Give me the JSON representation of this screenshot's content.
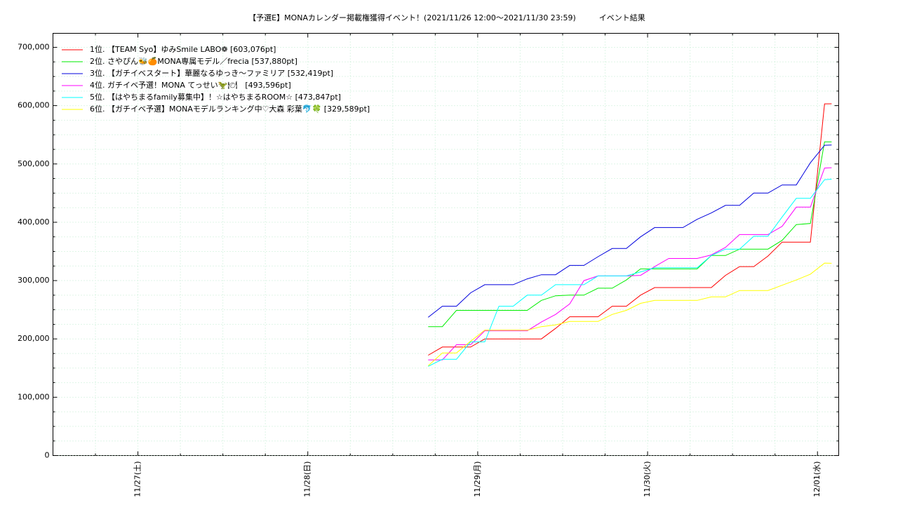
{
  "chart_data": {
    "type": "line",
    "title": "【予選E】MONAカレンダー掲載権獲得イベント！(2021/11/26 12:00〜2021/11/30 23:59)　　　イベント結果",
    "x": [
      "11/28 17:00",
      "11/28 19:00",
      "11/28 21:00",
      "11/28 23:00",
      "11/29 01:00",
      "11/29 03:00",
      "11/29 05:00",
      "11/29 07:00",
      "11/29 09:00",
      "11/29 11:00",
      "11/29 13:00",
      "11/29 15:00",
      "11/29 17:00",
      "11/29 19:00",
      "11/29 21:00",
      "11/29 23:00",
      "11/30 01:00",
      "11/30 03:00",
      "11/30 05:00",
      "11/30 07:00",
      "11/30 09:00",
      "11/30 11:00",
      "11/30 13:00",
      "11/30 15:00",
      "11/30 17:00",
      "11/30 19:00",
      "11/30 21:00",
      "11/30 23:00",
      "12/01 01:00",
      "12/01 02:00"
    ],
    "series": [
      {
        "name": "1位. 【TEAM Syo】ゆみSmile LABO❁ [603,076pt]",
        "color": "#ff0000",
        "values": [
          172000,
          186000,
          186000,
          186000,
          200000,
          200000,
          200000,
          200000,
          200000,
          218000,
          238000,
          238000,
          238000,
          256000,
          256000,
          275000,
          288000,
          288000,
          288000,
          288000,
          288000,
          309000,
          324000,
          324000,
          342000,
          366000,
          366000,
          366000,
          603000,
          603076
        ]
      },
      {
        "name": "2位. さやぴん🐝🍊MONA専属モデル／frecia [537,880pt]",
        "color": "#00ee00",
        "values": [
          221000,
          221000,
          249000,
          249000,
          249000,
          249000,
          249000,
          249000,
          266000,
          274000,
          275000,
          275000,
          287000,
          287000,
          301000,
          320000,
          320000,
          320000,
          320000,
          320000,
          343000,
          343000,
          354000,
          354000,
          354000,
          369000,
          396000,
          398000,
          538000,
          537880
        ]
      },
      {
        "name": "3位. 【ガチイベスタート】華麗なるゆっき〜ファミリア [532,419pt]",
        "color": "#0000dd",
        "values": [
          237000,
          256000,
          256000,
          279000,
          293000,
          293000,
          293000,
          303000,
          310000,
          310000,
          326000,
          326000,
          341000,
          355000,
          355000,
          375000,
          391000,
          391000,
          391000,
          405000,
          416000,
          429000,
          429000,
          450000,
          450000,
          464000,
          464000,
          502000,
          532000,
          532419
        ]
      },
      {
        "name": "4位. ガチイベ予選！MONA てっせい🦖🍽　[493,596pt]",
        "color": "#ff00ff",
        "values": [
          164000,
          164000,
          190000,
          190000,
          214000,
          214000,
          214000,
          214000,
          229000,
          242000,
          260000,
          300000,
          308000,
          308000,
          308000,
          309000,
          324000,
          338000,
          338000,
          338000,
          344000,
          357000,
          379000,
          379000,
          379000,
          393000,
          426000,
          426000,
          493000,
          493596
        ]
      },
      {
        "name": "5位. 【はやちまるfamily募集中】！☆はやちまるROOM☆ [473,847pt]",
        "color": "#00ffff",
        "values": [
          153000,
          165000,
          165000,
          195000,
          195000,
          256000,
          256000,
          275000,
          275000,
          293000,
          293000,
          293000,
          308000,
          308000,
          308000,
          315000,
          322000,
          322000,
          322000,
          322000,
          343000,
          354000,
          354000,
          376000,
          376000,
          409000,
          441000,
          441000,
          473000,
          473847
        ]
      },
      {
        "name": "6位. 【ガチイベ予選】MONAモデルランキング中♡大森 彩葉🐬🍀 [329,589pt]",
        "color": "#ffff00",
        "values": [
          154000,
          176000,
          176000,
          196000,
          215000,
          215000,
          215000,
          215000,
          221000,
          224000,
          230000,
          230000,
          230000,
          242000,
          249000,
          261000,
          266000,
          266000,
          266000,
          266000,
          272000,
          272000,
          283000,
          283000,
          283000,
          292000,
          301000,
          311000,
          330000,
          329589
        ]
      }
    ],
    "xlim": [
      "11/26 12:00",
      "12/01 03:00"
    ],
    "xticks": [
      {
        "value": "11/27 00:00",
        "label": "11/27(土)"
      },
      {
        "value": "11/28 00:00",
        "label": "11/28(日)"
      },
      {
        "value": "11/29 00:00",
        "label": "11/29(月)"
      },
      {
        "value": "11/30 00:00",
        "label": "11/30(火)"
      },
      {
        "value": "12/01 00:00",
        "label": "12/01(水)"
      }
    ],
    "xminorticks": [
      "11/26 18:00",
      "11/27 06:00",
      "11/27 12:00",
      "11/27 18:00",
      "11/28 06:00",
      "11/28 12:00",
      "11/28 18:00",
      "11/29 06:00",
      "11/29 12:00",
      "11/29 18:00",
      "11/30 06:00",
      "11/30 12:00",
      "11/30 18:00"
    ],
    "ylim": [
      0,
      724000
    ],
    "yticks": [
      0,
      {
        "value": 100000,
        "label": "100,000"
      },
      {
        "value": 200000,
        "label": "200,000"
      },
      {
        "value": 300000,
        "label": "300,000"
      },
      {
        "value": 400000,
        "label": "400,000"
      },
      {
        "value": 500000,
        "label": "500,000"
      },
      {
        "value": 600000,
        "label": "600,000"
      },
      {
        "value": 700000,
        "label": "700,000"
      }
    ],
    "yminorticks": [
      25000,
      50000,
      75000,
      125000,
      150000,
      175000,
      225000,
      250000,
      275000,
      325000,
      350000,
      375000,
      425000,
      450000,
      475000,
      525000,
      550000,
      575000,
      625000,
      650000,
      675000
    ],
    "grid": true,
    "legend": "top-left"
  }
}
